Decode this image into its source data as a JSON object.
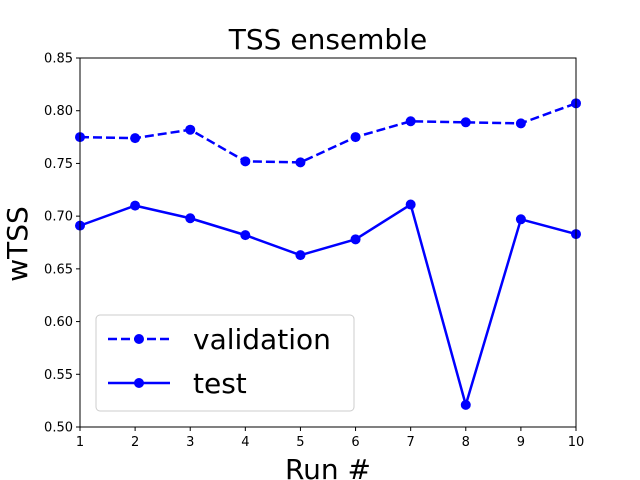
{
  "chart_data": {
    "type": "line",
    "title": "TSS ensemble",
    "xlabel": "Run #",
    "ylabel": "wTSS",
    "x": [
      1,
      2,
      3,
      4,
      5,
      6,
      7,
      8,
      9,
      10
    ],
    "xlim": [
      1,
      10
    ],
    "ylim": [
      0.5,
      0.85
    ],
    "xticks": [
      "1",
      "2",
      "3",
      "4",
      "5",
      "6",
      "7",
      "8",
      "9",
      "10"
    ],
    "yticks": [
      "0.50",
      "0.55",
      "0.60",
      "0.65",
      "0.70",
      "0.75",
      "0.80",
      "0.85"
    ],
    "grid": false,
    "legend_position": "lower-left",
    "series": [
      {
        "name": "validation",
        "style": "dashed",
        "marker": "circle",
        "color": "#0000ff",
        "values": [
          0.775,
          0.774,
          0.782,
          0.752,
          0.751,
          0.775,
          0.79,
          0.789,
          0.788,
          0.807
        ]
      },
      {
        "name": "test",
        "style": "solid",
        "marker": "circle",
        "color": "#0000ff",
        "values": [
          0.691,
          0.71,
          0.698,
          0.682,
          0.663,
          0.678,
          0.711,
          0.521,
          0.697,
          0.683
        ]
      }
    ]
  }
}
